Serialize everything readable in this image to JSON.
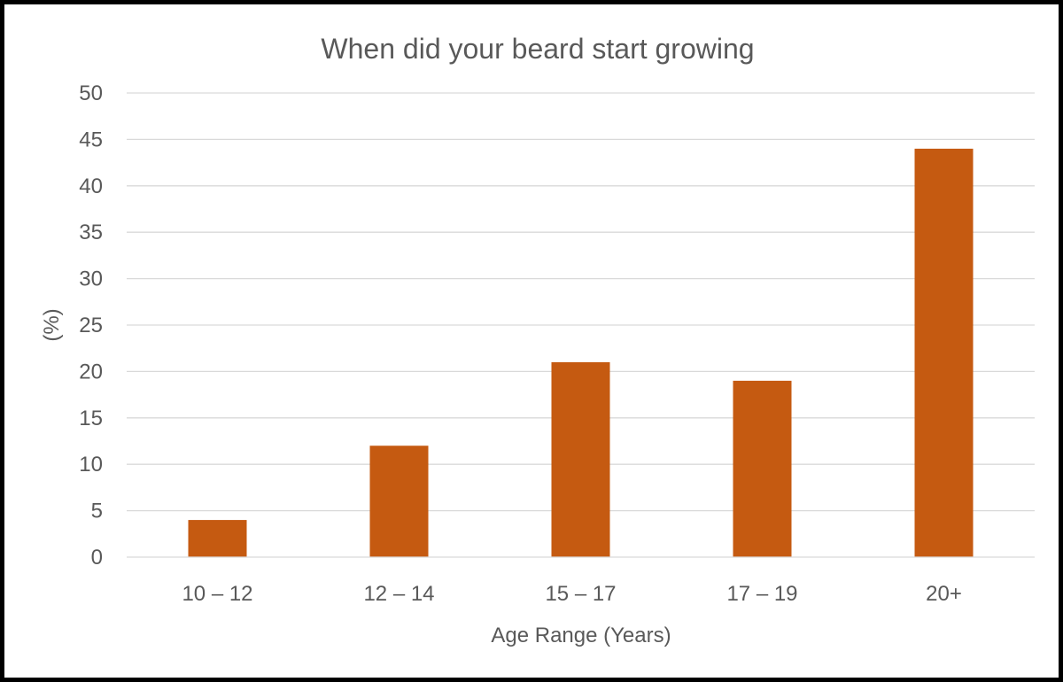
{
  "chart_data": {
    "type": "bar",
    "title": "When did your beard start growing",
    "xlabel": "Age Range (Years)",
    "ylabel": "(%)",
    "categories": [
      "10 – 12",
      "12 – 14",
      "15 – 17",
      "17 – 19",
      "20+"
    ],
    "values": [
      4,
      12,
      21,
      19,
      44
    ],
    "ylim": [
      0,
      50
    ],
    "yticks": [
      0,
      5,
      10,
      15,
      20,
      25,
      30,
      35,
      40,
      45,
      50
    ],
    "grid": true,
    "legend": "none",
    "bar_color": "#C55A11"
  }
}
